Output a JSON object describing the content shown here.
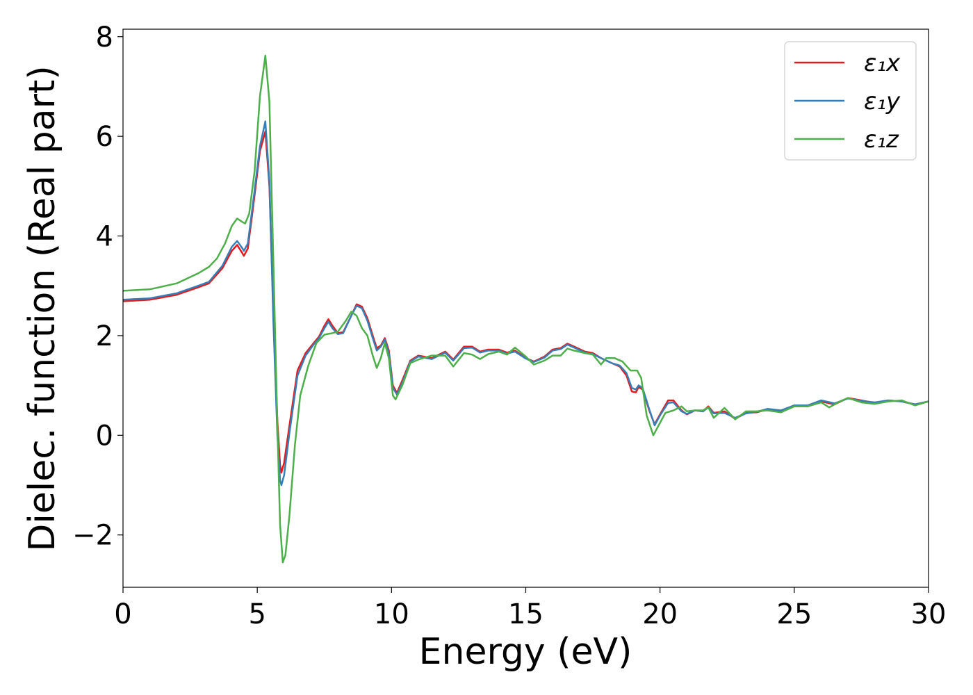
{
  "chart_data": {
    "type": "line",
    "title": "",
    "xlabel": "Energy (eV)",
    "ylabel": "Dielec. function (Real part)",
    "xlim": [
      0,
      30
    ],
    "ylim": [
      -3.05,
      8.15
    ],
    "xticks": [
      0,
      5,
      10,
      15,
      20,
      25,
      30
    ],
    "xtick_labels": [
      "0",
      "5",
      "10",
      "15",
      "20",
      "25",
      "30"
    ],
    "yticks": [
      -2,
      0,
      2,
      4,
      6,
      8
    ],
    "ytick_labels": [
      "−2",
      "0",
      "2",
      "4",
      "6",
      "8"
    ],
    "grid": false,
    "legend_position": "top-right",
    "series": [
      {
        "name": "ε₁x",
        "color": "#e41a1c",
        "points": [
          [
            0,
            2.69
          ],
          [
            1,
            2.72
          ],
          [
            2,
            2.82
          ],
          [
            2.8,
            2.97
          ],
          [
            3.2,
            3.05
          ],
          [
            3.7,
            3.35
          ],
          [
            4.05,
            3.7
          ],
          [
            4.25,
            3.82
          ],
          [
            4.45,
            3.65
          ],
          [
            4.5,
            3.6
          ],
          [
            4.65,
            3.75
          ],
          [
            4.85,
            4.6
          ],
          [
            5.1,
            5.7
          ],
          [
            5.3,
            6.1
          ],
          [
            5.45,
            5.0
          ],
          [
            5.6,
            2.5
          ],
          [
            5.75,
            0.3
          ],
          [
            5.85,
            -0.6
          ],
          [
            5.9,
            -0.75
          ],
          [
            6.0,
            -0.55
          ],
          [
            6.2,
            0.2
          ],
          [
            6.5,
            1.3
          ],
          [
            6.8,
            1.65
          ],
          [
            7.1,
            1.85
          ],
          [
            7.3,
            1.98
          ],
          [
            7.5,
            2.2
          ],
          [
            7.65,
            2.33
          ],
          [
            7.8,
            2.2
          ],
          [
            8.0,
            2.05
          ],
          [
            8.2,
            2.07
          ],
          [
            8.5,
            2.4
          ],
          [
            8.7,
            2.63
          ],
          [
            8.9,
            2.58
          ],
          [
            9.1,
            2.35
          ],
          [
            9.3,
            2.0
          ],
          [
            9.45,
            1.75
          ],
          [
            9.6,
            1.8
          ],
          [
            9.75,
            1.95
          ],
          [
            9.9,
            1.7
          ],
          [
            10.05,
            1.0
          ],
          [
            10.2,
            0.85
          ],
          [
            10.4,
            1.1
          ],
          [
            10.7,
            1.5
          ],
          [
            11.0,
            1.6
          ],
          [
            11.5,
            1.55
          ],
          [
            12.0,
            1.68
          ],
          [
            12.3,
            1.52
          ],
          [
            12.7,
            1.78
          ],
          [
            13.0,
            1.78
          ],
          [
            13.3,
            1.68
          ],
          [
            13.6,
            1.72
          ],
          [
            14.0,
            1.72
          ],
          [
            14.3,
            1.66
          ],
          [
            14.6,
            1.7
          ],
          [
            15.0,
            1.55
          ],
          [
            15.3,
            1.48
          ],
          [
            15.7,
            1.58
          ],
          [
            16.0,
            1.72
          ],
          [
            16.3,
            1.75
          ],
          [
            16.55,
            1.84
          ],
          [
            16.8,
            1.78
          ],
          [
            17.2,
            1.68
          ],
          [
            17.5,
            1.65
          ],
          [
            17.8,
            1.55
          ],
          [
            18.2,
            1.45
          ],
          [
            18.5,
            1.38
          ],
          [
            18.75,
            1.2
          ],
          [
            18.95,
            0.88
          ],
          [
            19.1,
            0.86
          ],
          [
            19.2,
            0.97
          ],
          [
            19.35,
            0.92
          ],
          [
            19.6,
            0.5
          ],
          [
            19.8,
            0.22
          ],
          [
            20.0,
            0.42
          ],
          [
            20.3,
            0.7
          ],
          [
            20.5,
            0.7
          ],
          [
            20.8,
            0.5
          ],
          [
            21.0,
            0.42
          ],
          [
            21.3,
            0.5
          ],
          [
            21.6,
            0.48
          ],
          [
            21.8,
            0.58
          ],
          [
            22.0,
            0.45
          ],
          [
            22.4,
            0.48
          ],
          [
            22.8,
            0.33
          ],
          [
            23.2,
            0.45
          ],
          [
            23.6,
            0.46
          ],
          [
            24.0,
            0.52
          ],
          [
            24.5,
            0.48
          ],
          [
            25.0,
            0.6
          ],
          [
            25.5,
            0.58
          ],
          [
            26.0,
            0.68
          ],
          [
            26.5,
            0.62
          ],
          [
            27.0,
            0.75
          ],
          [
            27.5,
            0.7
          ],
          [
            28.0,
            0.65
          ],
          [
            28.5,
            0.7
          ],
          [
            29.0,
            0.68
          ],
          [
            29.5,
            0.62
          ],
          [
            30,
            0.68
          ]
        ]
      },
      {
        "name": "ε₁y",
        "color": "#377eb8",
        "points": [
          [
            0,
            2.72
          ],
          [
            1,
            2.75
          ],
          [
            2,
            2.85
          ],
          [
            2.8,
            3.0
          ],
          [
            3.2,
            3.08
          ],
          [
            3.7,
            3.4
          ],
          [
            4.05,
            3.78
          ],
          [
            4.25,
            3.9
          ],
          [
            4.45,
            3.75
          ],
          [
            4.5,
            3.7
          ],
          [
            4.65,
            3.85
          ],
          [
            4.85,
            4.7
          ],
          [
            5.1,
            5.8
          ],
          [
            5.3,
            6.3
          ],
          [
            5.45,
            5.1
          ],
          [
            5.6,
            2.3
          ],
          [
            5.75,
            0.0
          ],
          [
            5.85,
            -0.9
          ],
          [
            5.9,
            -1.0
          ],
          [
            6.0,
            -0.8
          ],
          [
            6.2,
            0.05
          ],
          [
            6.5,
            1.2
          ],
          [
            6.8,
            1.6
          ],
          [
            7.1,
            1.82
          ],
          [
            7.3,
            1.95
          ],
          [
            7.5,
            2.15
          ],
          [
            7.65,
            2.28
          ],
          [
            7.8,
            2.15
          ],
          [
            8.0,
            2.03
          ],
          [
            8.2,
            2.05
          ],
          [
            8.5,
            2.4
          ],
          [
            8.7,
            2.6
          ],
          [
            8.9,
            2.55
          ],
          [
            9.1,
            2.3
          ],
          [
            9.3,
            1.95
          ],
          [
            9.45,
            1.7
          ],
          [
            9.6,
            1.78
          ],
          [
            9.75,
            1.92
          ],
          [
            9.9,
            1.65
          ],
          [
            10.05,
            0.95
          ],
          [
            10.2,
            0.82
          ],
          [
            10.4,
            1.05
          ],
          [
            10.7,
            1.48
          ],
          [
            11.0,
            1.58
          ],
          [
            11.5,
            1.53
          ],
          [
            12.0,
            1.66
          ],
          [
            12.3,
            1.5
          ],
          [
            12.7,
            1.75
          ],
          [
            13.0,
            1.76
          ],
          [
            13.3,
            1.66
          ],
          [
            13.6,
            1.7
          ],
          [
            14.0,
            1.7
          ],
          [
            14.3,
            1.64
          ],
          [
            14.6,
            1.68
          ],
          [
            15.0,
            1.54
          ],
          [
            15.3,
            1.47
          ],
          [
            15.7,
            1.56
          ],
          [
            16.0,
            1.7
          ],
          [
            16.3,
            1.73
          ],
          [
            16.55,
            1.82
          ],
          [
            16.8,
            1.76
          ],
          [
            17.2,
            1.66
          ],
          [
            17.5,
            1.63
          ],
          [
            17.8,
            1.55
          ],
          [
            18.2,
            1.45
          ],
          [
            18.5,
            1.4
          ],
          [
            18.75,
            1.25
          ],
          [
            18.95,
            0.95
          ],
          [
            19.1,
            0.92
          ],
          [
            19.2,
            1.0
          ],
          [
            19.35,
            0.95
          ],
          [
            19.6,
            0.52
          ],
          [
            19.8,
            0.2
          ],
          [
            20.0,
            0.4
          ],
          [
            20.3,
            0.65
          ],
          [
            20.5,
            0.66
          ],
          [
            20.8,
            0.48
          ],
          [
            21.0,
            0.43
          ],
          [
            21.3,
            0.5
          ],
          [
            21.6,
            0.48
          ],
          [
            21.8,
            0.56
          ],
          [
            22.0,
            0.44
          ],
          [
            22.4,
            0.45
          ],
          [
            22.8,
            0.35
          ],
          [
            23.2,
            0.44
          ],
          [
            23.6,
            0.47
          ],
          [
            24.0,
            0.53
          ],
          [
            24.5,
            0.5
          ],
          [
            25.0,
            0.6
          ],
          [
            25.5,
            0.6
          ],
          [
            26.0,
            0.7
          ],
          [
            26.5,
            0.64
          ],
          [
            27.0,
            0.74
          ],
          [
            27.5,
            0.69
          ],
          [
            28.0,
            0.66
          ],
          [
            28.5,
            0.7
          ],
          [
            29.0,
            0.68
          ],
          [
            29.5,
            0.62
          ],
          [
            30,
            0.68
          ]
        ]
      },
      {
        "name": "ε₁z",
        "color": "#4daf4a",
        "points": [
          [
            0,
            2.9
          ],
          [
            1,
            2.93
          ],
          [
            2,
            3.05
          ],
          [
            2.8,
            3.25
          ],
          [
            3.2,
            3.38
          ],
          [
            3.5,
            3.55
          ],
          [
            3.8,
            3.85
          ],
          [
            4.05,
            4.2
          ],
          [
            4.25,
            4.35
          ],
          [
            4.45,
            4.28
          ],
          [
            4.55,
            4.25
          ],
          [
            4.7,
            4.45
          ],
          [
            4.9,
            5.3
          ],
          [
            5.1,
            6.8
          ],
          [
            5.3,
            7.62
          ],
          [
            5.45,
            6.7
          ],
          [
            5.6,
            3.5
          ],
          [
            5.75,
            0.2
          ],
          [
            5.85,
            -1.8
          ],
          [
            5.95,
            -2.55
          ],
          [
            6.05,
            -2.4
          ],
          [
            6.2,
            -1.6
          ],
          [
            6.4,
            -0.2
          ],
          [
            6.6,
            0.8
          ],
          [
            6.9,
            1.4
          ],
          [
            7.2,
            1.85
          ],
          [
            7.5,
            2.02
          ],
          [
            7.8,
            2.05
          ],
          [
            8.0,
            2.08
          ],
          [
            8.3,
            2.3
          ],
          [
            8.5,
            2.48
          ],
          [
            8.7,
            2.4
          ],
          [
            8.9,
            2.15
          ],
          [
            9.1,
            2.0
          ],
          [
            9.3,
            1.6
          ],
          [
            9.45,
            1.35
          ],
          [
            9.6,
            1.55
          ],
          [
            9.75,
            1.85
          ],
          [
            9.9,
            1.55
          ],
          [
            10.05,
            0.8
          ],
          [
            10.15,
            0.72
          ],
          [
            10.4,
            1.0
          ],
          [
            10.7,
            1.45
          ],
          [
            11.0,
            1.52
          ],
          [
            11.5,
            1.6
          ],
          [
            12.0,
            1.6
          ],
          [
            12.3,
            1.38
          ],
          [
            12.7,
            1.65
          ],
          [
            13.0,
            1.62
          ],
          [
            13.3,
            1.53
          ],
          [
            13.6,
            1.63
          ],
          [
            14.0,
            1.68
          ],
          [
            14.3,
            1.62
          ],
          [
            14.6,
            1.76
          ],
          [
            15.0,
            1.58
          ],
          [
            15.3,
            1.42
          ],
          [
            15.7,
            1.5
          ],
          [
            16.0,
            1.6
          ],
          [
            16.3,
            1.6
          ],
          [
            16.55,
            1.74
          ],
          [
            16.8,
            1.7
          ],
          [
            17.2,
            1.65
          ],
          [
            17.5,
            1.62
          ],
          [
            17.8,
            1.42
          ],
          [
            18.0,
            1.55
          ],
          [
            18.3,
            1.55
          ],
          [
            18.6,
            1.48
          ],
          [
            18.9,
            1.3
          ],
          [
            19.15,
            1.3
          ],
          [
            19.3,
            1.15
          ],
          [
            19.5,
            0.4
          ],
          [
            19.75,
            0.0
          ],
          [
            19.95,
            0.2
          ],
          [
            20.2,
            0.45
          ],
          [
            20.5,
            0.5
          ],
          [
            20.8,
            0.58
          ],
          [
            21.0,
            0.48
          ],
          [
            21.3,
            0.5
          ],
          [
            21.6,
            0.5
          ],
          [
            21.8,
            0.56
          ],
          [
            22.0,
            0.35
          ],
          [
            22.4,
            0.55
          ],
          [
            22.8,
            0.32
          ],
          [
            23.2,
            0.48
          ],
          [
            23.6,
            0.48
          ],
          [
            24.0,
            0.5
          ],
          [
            24.5,
            0.46
          ],
          [
            25.0,
            0.58
          ],
          [
            25.5,
            0.58
          ],
          [
            26.0,
            0.66
          ],
          [
            26.3,
            0.56
          ],
          [
            26.7,
            0.68
          ],
          [
            27.0,
            0.75
          ],
          [
            27.5,
            0.66
          ],
          [
            28.0,
            0.63
          ],
          [
            28.5,
            0.68
          ],
          [
            29.0,
            0.7
          ],
          [
            29.5,
            0.6
          ],
          [
            30,
            0.68
          ]
        ]
      }
    ]
  }
}
